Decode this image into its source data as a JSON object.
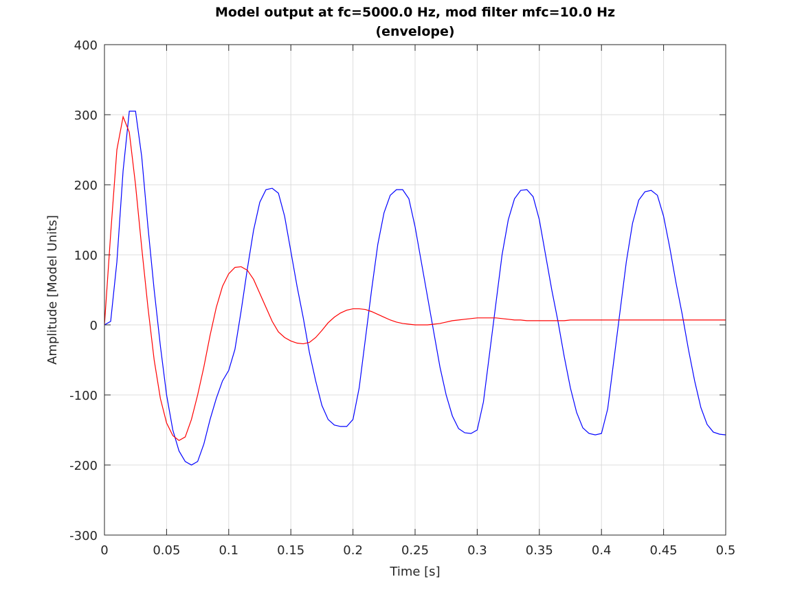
{
  "chart_data": {
    "type": "line",
    "title": [
      "Model output at fc=5000.0 Hz, mod filter mfc=10.0 Hz",
      "(envelope)"
    ],
    "x_label": "Time [s]",
    "y_label": "Amplitude [Model Units]",
    "xlim": [
      0,
      0.5
    ],
    "ylim": [
      -300,
      400
    ],
    "xticks": [
      0,
      0.05,
      0.1,
      0.15,
      0.2,
      0.25,
      0.3,
      0.35,
      0.4,
      0.45,
      0.5
    ],
    "yticks": [
      -300,
      -200,
      -100,
      0,
      100,
      200,
      300,
      400
    ],
    "grid": true,
    "x": [
      0,
      0.005,
      0.01,
      0.015,
      0.02,
      0.025,
      0.03,
      0.035,
      0.04,
      0.045,
      0.05,
      0.055,
      0.06,
      0.065,
      0.07,
      0.075,
      0.08,
      0.085,
      0.09,
      0.095,
      0.1,
      0.105,
      0.11,
      0.115,
      0.12,
      0.125,
      0.13,
      0.135,
      0.14,
      0.145,
      0.15,
      0.155,
      0.16,
      0.165,
      0.17,
      0.175,
      0.18,
      0.185,
      0.19,
      0.195,
      0.2,
      0.205,
      0.21,
      0.215,
      0.22,
      0.225,
      0.23,
      0.235,
      0.24,
      0.245,
      0.25,
      0.255,
      0.26,
      0.265,
      0.27,
      0.275,
      0.28,
      0.285,
      0.29,
      0.295,
      0.3,
      0.305,
      0.31,
      0.315,
      0.32,
      0.325,
      0.33,
      0.335,
      0.34,
      0.345,
      0.35,
      0.355,
      0.36,
      0.365,
      0.37,
      0.375,
      0.38,
      0.385,
      0.39,
      0.395,
      0.4,
      0.405,
      0.41,
      0.415,
      0.42,
      0.425,
      0.43,
      0.435,
      0.44,
      0.445,
      0.45,
      0.455,
      0.46,
      0.465,
      0.47,
      0.475,
      0.48,
      0.485,
      0.49,
      0.495,
      0.5
    ],
    "series": [
      {
        "color": "#0000ff",
        "values": [
          0,
          5,
          90,
          220,
          305,
          305,
          240,
          140,
          50,
          -30,
          -100,
          -150,
          -180,
          -195,
          -200,
          -195,
          -170,
          -135,
          -105,
          -80,
          -65,
          -35,
          20,
          80,
          135,
          175,
          193,
          195,
          188,
          155,
          105,
          55,
          10,
          -40,
          -80,
          -115,
          -135,
          -143,
          -145,
          -145,
          -135,
          -90,
          -20,
          50,
          115,
          160,
          185,
          193,
          193,
          180,
          140,
          90,
          40,
          -10,
          -60,
          -100,
          -130,
          -148,
          -154,
          -155,
          -150,
          -110,
          -40,
          30,
          100,
          150,
          180,
          192,
          193,
          183,
          150,
          100,
          50,
          5,
          -45,
          -90,
          -125,
          -147,
          -155,
          -157,
          -155,
          -120,
          -50,
          20,
          90,
          145,
          178,
          190,
          192,
          185,
          155,
          110,
          60,
          15,
          -35,
          -80,
          -118,
          -142,
          -153,
          -156,
          -157
        ]
      },
      {
        "color": "#ff0000",
        "values": [
          0,
          130,
          250,
          297,
          275,
          200,
          110,
          25,
          -50,
          -105,
          -140,
          -158,
          -165,
          -160,
          -135,
          -100,
          -60,
          -15,
          25,
          55,
          73,
          82,
          83,
          78,
          65,
          45,
          25,
          5,
          -10,
          -18,
          -23,
          -26,
          -27,
          -25,
          -18,
          -8,
          3,
          11,
          17,
          21,
          23,
          23,
          22,
          19,
          15,
          11,
          7,
          4,
          2,
          1,
          0,
          0,
          0,
          1,
          2,
          4,
          6,
          7,
          8,
          9,
          10,
          10,
          10,
          10,
          9,
          8,
          7,
          7,
          6,
          6,
          6,
          6,
          6,
          6,
          6,
          7,
          7,
          7,
          7,
          7,
          7,
          7,
          7,
          7,
          7,
          7,
          7,
          7,
          7,
          7,
          7,
          7,
          7,
          7,
          7,
          7,
          7,
          7,
          7,
          7,
          7
        ]
      }
    ]
  }
}
